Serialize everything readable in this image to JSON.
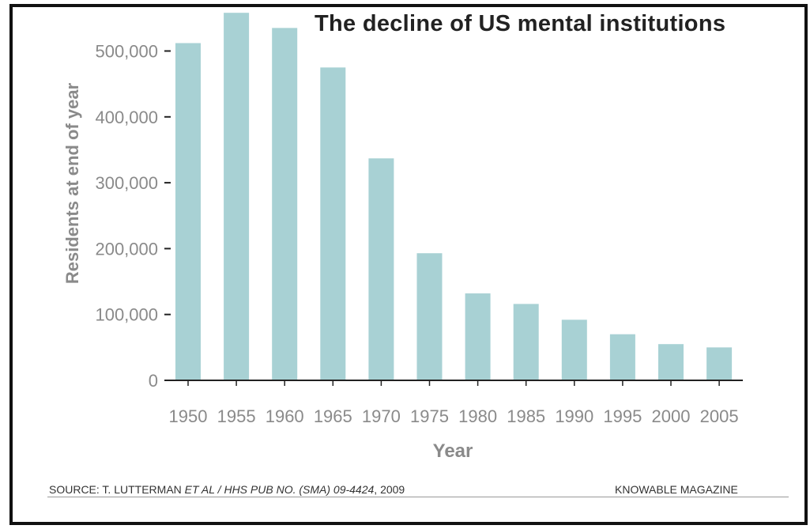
{
  "chart_data": {
    "type": "bar",
    "title": "The decline of US mental institutions",
    "xlabel": "Year",
    "ylabel": "Residents at end of year",
    "categories": [
      "1950",
      "1955",
      "1960",
      "1965",
      "1970",
      "1975",
      "1980",
      "1985",
      "1990",
      "1995",
      "2000",
      "2005"
    ],
    "values": [
      512000,
      558000,
      535000,
      475000,
      337000,
      193000,
      132000,
      116000,
      92000,
      70000,
      55000,
      50000
    ],
    "ylim": [
      0,
      560000
    ],
    "yticks": [
      0,
      100000,
      200000,
      300000,
      400000,
      500000
    ],
    "ytick_labels": [
      "0",
      "100,000",
      "200,000",
      "300,000",
      "400,000",
      "500,000"
    ],
    "grid": false,
    "bar_color": "#a8d1d4"
  },
  "footer": {
    "source_prefix": "SOURCE: T. LUTTERMAN ",
    "source_italic": "ET AL / HHS PUB NO. (SMA) 09-4424",
    "source_suffix": ", 2009",
    "publisher": "KNOWABLE MAGAZINE"
  }
}
